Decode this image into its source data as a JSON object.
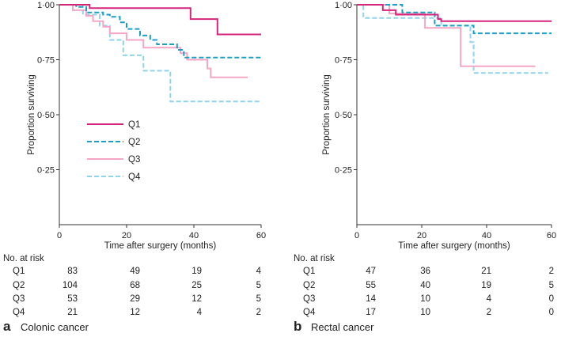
{
  "chart_data": [
    {
      "type": "line",
      "subtype": "kaplan-meier",
      "panel_letter": "a",
      "title": "Colonic cancer",
      "xlabel": "Time after surgery (months)",
      "ylabel": "Proportion surviving",
      "xlim": [
        0,
        60
      ],
      "ylim": [
        0,
        1
      ],
      "xticks": [
        "0",
        "20",
        "40",
        "60"
      ],
      "xtick_values": [
        0,
        20,
        40,
        60
      ],
      "yticks": [
        "0·25",
        "0·50",
        "0·75",
        "1·00"
      ],
      "ytick_values": [
        0.25,
        0.5,
        0.75,
        1.0
      ],
      "legend_position": "middle-left",
      "series": [
        {
          "name": "Q1",
          "color": "#d6247d",
          "dash": "solid",
          "steps": [
            [
              0,
              1.0
            ],
            [
              9,
              0.985
            ],
            [
              39,
              0.935
            ],
            [
              47,
              0.865
            ],
            [
              60,
              0.865
            ]
          ]
        },
        {
          "name": "Q2",
          "color": "#1b9fc6",
          "dash": "dashed",
          "steps": [
            [
              0,
              1.0
            ],
            [
              5,
              0.99
            ],
            [
              8,
              0.965
            ],
            [
              13,
              0.955
            ],
            [
              15,
              0.945
            ],
            [
              18,
              0.92
            ],
            [
              20,
              0.89
            ],
            [
              24,
              0.86
            ],
            [
              27,
              0.84
            ],
            [
              29,
              0.82
            ],
            [
              35,
              0.795
            ],
            [
              37,
              0.76
            ],
            [
              60,
              0.76
            ]
          ]
        },
        {
          "name": "Q3",
          "color": "#f4a6c4",
          "dash": "solid",
          "steps": [
            [
              0,
              1.0
            ],
            [
              4,
              0.975
            ],
            [
              8,
              0.95
            ],
            [
              10,
              0.925
            ],
            [
              13,
              0.9
            ],
            [
              15,
              0.87
            ],
            [
              20,
              0.84
            ],
            [
              25,
              0.805
            ],
            [
              36,
              0.78
            ],
            [
              38,
              0.75
            ],
            [
              44,
              0.71
            ],
            [
              45,
              0.67
            ],
            [
              56,
              0.67
            ]
          ]
        },
        {
          "name": "Q4",
          "color": "#8fd3ee",
          "dash": "dashed",
          "steps": [
            [
              0,
              1.0
            ],
            [
              7,
              0.955
            ],
            [
              12,
              0.905
            ],
            [
              15,
              0.84
            ],
            [
              19,
              0.77
            ],
            [
              25,
              0.7
            ],
            [
              33,
              0.56
            ],
            [
              60,
              0.56
            ]
          ]
        }
      ],
      "risk_table": {
        "header": "No. at risk",
        "rows": [
          {
            "label": "Q1",
            "values": [
              "83",
              "49",
              "19",
              "4"
            ]
          },
          {
            "label": "Q2",
            "values": [
              "104",
              "68",
              "25",
              "5"
            ]
          },
          {
            "label": "Q3",
            "values": [
              "53",
              "29",
              "12",
              "5"
            ]
          },
          {
            "label": "Q4",
            "values": [
              "21",
              "12",
              "4",
              "2"
            ]
          }
        ]
      }
    },
    {
      "type": "line",
      "subtype": "kaplan-meier",
      "panel_letter": "b",
      "title": "Rectal cancer",
      "xlabel": "Time after surgery (months)",
      "ylabel": "Proportion surviving",
      "xlim": [
        0,
        60
      ],
      "ylim": [
        0,
        1
      ],
      "xticks": [
        "0",
        "20",
        "40",
        "60"
      ],
      "xtick_values": [
        0,
        20,
        40,
        60
      ],
      "yticks": [
        "0·25",
        "0·50",
        "0·75",
        "1·00"
      ],
      "ytick_values": [
        0.25,
        0.5,
        0.75,
        1.0
      ],
      "legend_position": "none",
      "series": [
        {
          "name": "Q1",
          "color": "#d6247d",
          "dash": "solid",
          "steps": [
            [
              0,
              1.0
            ],
            [
              8,
              0.975
            ],
            [
              12,
              0.955
            ],
            [
              25,
              0.935
            ],
            [
              26,
              0.925
            ],
            [
              60,
              0.925
            ]
          ]
        },
        {
          "name": "Q2",
          "color": "#1b9fc6",
          "dash": "dashed",
          "steps": [
            [
              0,
              1.0
            ],
            [
              14,
              0.965
            ],
            [
              24,
              0.905
            ],
            [
              36,
              0.87
            ],
            [
              60,
              0.87
            ]
          ]
        },
        {
          "name": "Q3",
          "color": "#f4a6c4",
          "dash": "solid",
          "steps": [
            [
              0,
              1.0
            ],
            [
              10,
              0.96
            ],
            [
              21,
              0.895
            ],
            [
              32,
              0.72
            ],
            [
              55,
              0.72
            ]
          ]
        },
        {
          "name": "Q4",
          "color": "#8fd3ee",
          "dash": "dashed",
          "steps": [
            [
              0,
              1.0
            ],
            [
              2,
              0.94
            ],
            [
              26,
              0.905
            ],
            [
              35,
              0.83
            ],
            [
              36,
              0.69
            ],
            [
              59,
              0.69
            ]
          ]
        }
      ],
      "risk_table": {
        "header": "No. at risk",
        "rows": [
          {
            "label": "Q1",
            "values": [
              "47",
              "36",
              "21",
              "2"
            ]
          },
          {
            "label": "Q2",
            "values": [
              "55",
              "40",
              "19",
              "5"
            ]
          },
          {
            "label": "Q3",
            "values": [
              "14",
              "10",
              "4",
              "0"
            ]
          },
          {
            "label": "Q4",
            "values": [
              "17",
              "10",
              "2",
              "0"
            ]
          }
        ]
      }
    }
  ]
}
